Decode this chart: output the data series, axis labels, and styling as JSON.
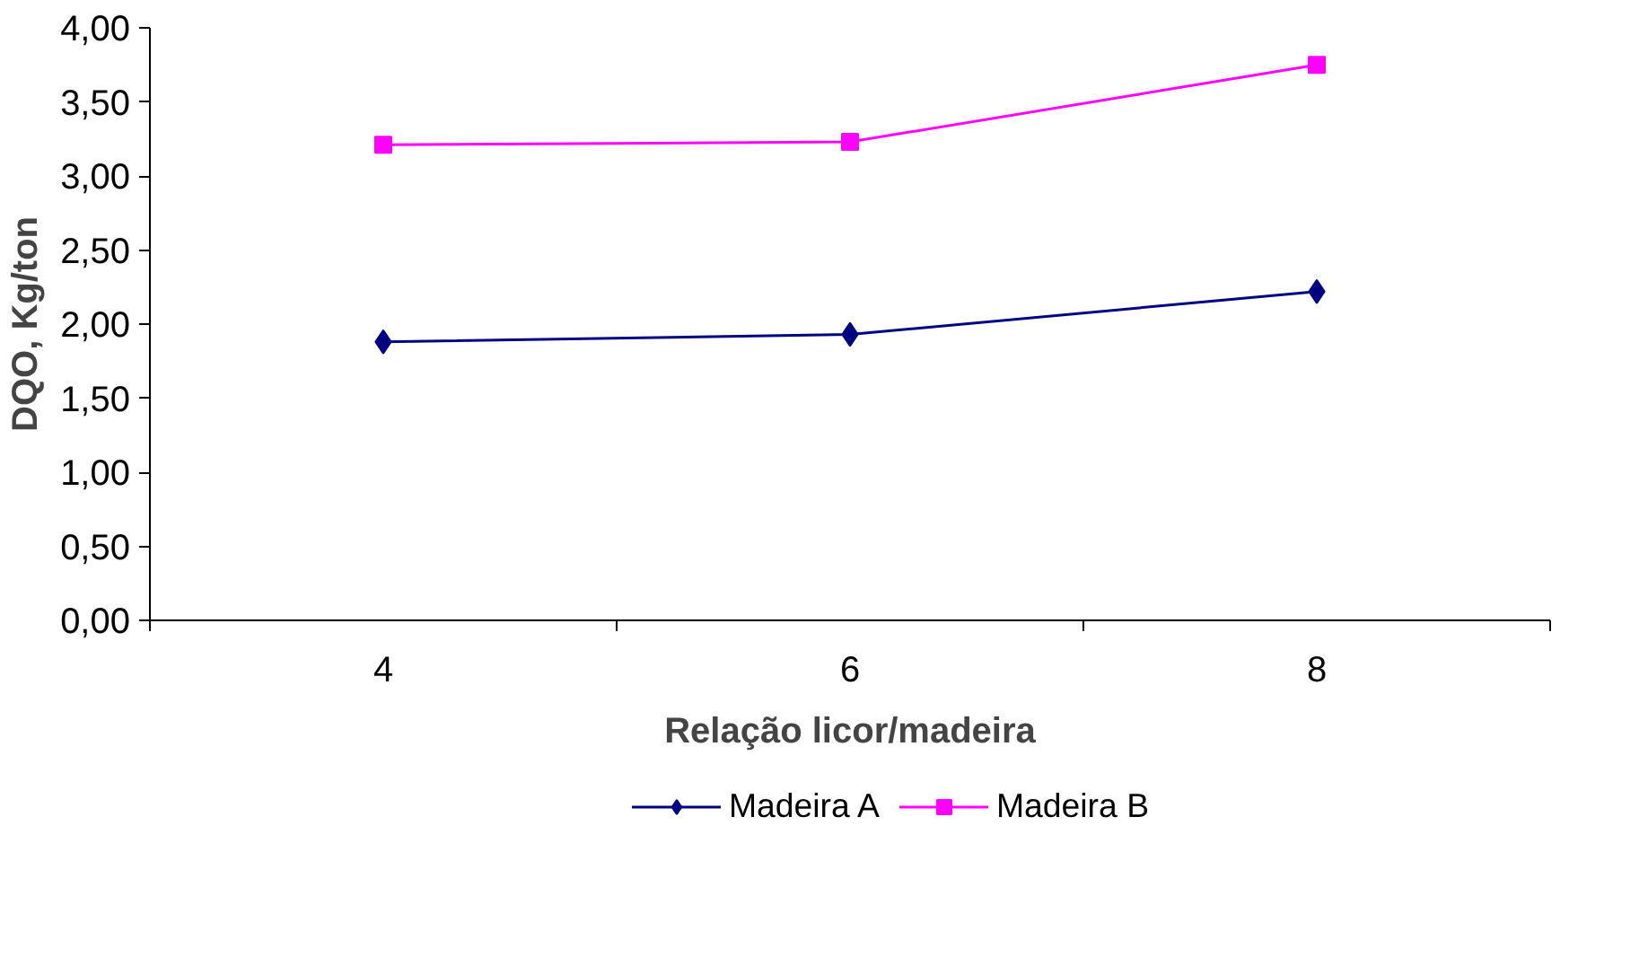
{
  "chart_data": {
    "type": "line",
    "xlabel": "Relação licor/madeira",
    "ylabel": "DQO, Kg/ton",
    "categories": [
      "4",
      "6",
      "8"
    ],
    "series": [
      {
        "name": "Madeira A",
        "color": "#000080",
        "values": [
          1.88,
          1.93,
          2.22
        ],
        "marker": "diamond"
      },
      {
        "name": "Madeira B",
        "color": "#ff00ff",
        "values": [
          3.21,
          3.23,
          3.75
        ],
        "marker": "square"
      }
    ],
    "ylim": [
      0,
      4
    ],
    "yticks": [
      {
        "value": 0,
        "label": "0,00"
      },
      {
        "value": 0.5,
        "label": "0,50"
      },
      {
        "value": 1,
        "label": "1,00"
      },
      {
        "value": 1.5,
        "label": "1,50"
      },
      {
        "value": 2,
        "label": "2,00"
      },
      {
        "value": 2.5,
        "label": "2,50"
      },
      {
        "value": 3,
        "label": "3,00"
      },
      {
        "value": 3.5,
        "label": "3,50"
      },
      {
        "value": 4,
        "label": "4,00"
      }
    ],
    "grid": false,
    "legend": "bottom",
    "line_style": "solid"
  }
}
